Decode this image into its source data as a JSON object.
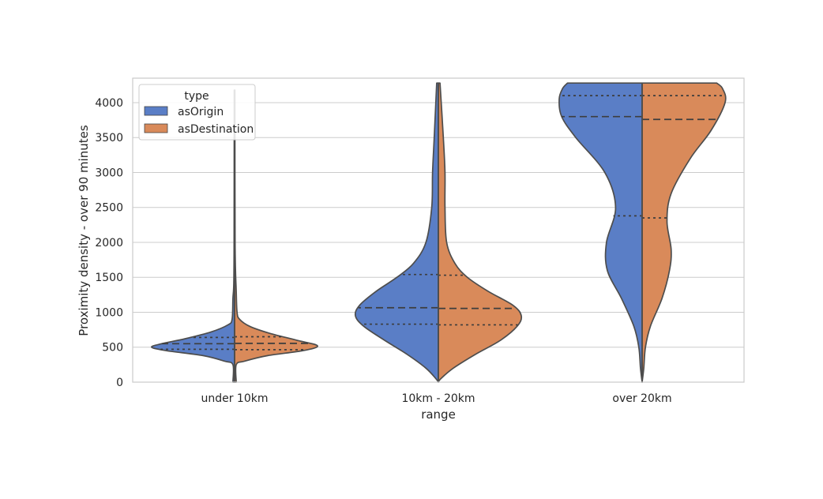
{
  "chart_data": {
    "type": "violin",
    "split": true,
    "categories": [
      "under 10km",
      "10km - 20km",
      "over 20km"
    ],
    "xlabel": "range",
    "ylabel": "Proximity density - over 90 minutes",
    "ylim": [
      0,
      4350
    ],
    "yticks": [
      0,
      500,
      1000,
      1500,
      2000,
      2500,
      3000,
      3500,
      4000
    ],
    "grid": true,
    "legend": {
      "title": "type",
      "placement": "top-left"
    },
    "series": [
      {
        "name": "asOrigin",
        "color": "#5a7ec6",
        "violins": [
          {
            "category": "under 10km",
            "min": 0,
            "max": 4180,
            "quartiles": [
              470,
              550,
              640
            ],
            "profile": [
              [
                0,
                0.02
              ],
              [
                250,
                0.02
              ],
              [
                300,
                0.12
              ],
              [
                380,
                0.38
              ],
              [
                450,
                0.82
              ],
              [
                500,
                1.0
              ],
              [
                550,
                0.88
              ],
              [
                620,
                0.6
              ],
              [
                720,
                0.28
              ],
              [
                820,
                0.08
              ],
              [
                900,
                0.03
              ],
              [
                1200,
                0.02
              ],
              [
                1400,
                0.01
              ],
              [
                2000,
                0.006
              ],
              [
                4180,
                0.004
              ]
            ]
          },
          {
            "category": "10km - 20km",
            "min": 0,
            "max": 4280,
            "quartiles": [
              830,
              1065,
              1540
            ],
            "profile": [
              [
                0,
                0.0
              ],
              [
                50,
                0.03
              ],
              [
                200,
                0.15
              ],
              [
                400,
                0.38
              ],
              [
                600,
                0.65
              ],
              [
                800,
                0.9
              ],
              [
                950,
                1.0
              ],
              [
                1100,
                0.95
              ],
              [
                1300,
                0.75
              ],
              [
                1500,
                0.5
              ],
              [
                1700,
                0.3
              ],
              [
                2000,
                0.15
              ],
              [
                2500,
                0.08
              ],
              [
                3000,
                0.07
              ],
              [
                3500,
                0.05
              ],
              [
                4280,
                0.02
              ]
            ]
          },
          {
            "category": "over 20km",
            "min": 0,
            "max": 4280,
            "quartiles": [
              2380,
              3800,
              4100
            ],
            "profile": [
              [
                0,
                0.0
              ],
              [
                200,
                0.02
              ],
              [
                500,
                0.04
              ],
              [
                800,
                0.1
              ],
              [
                1200,
                0.25
              ],
              [
                1600,
                0.42
              ],
              [
                2000,
                0.43
              ],
              [
                2500,
                0.32
              ],
              [
                3000,
                0.45
              ],
              [
                3500,
                0.8
              ],
              [
                3800,
                0.97
              ],
              [
                4050,
                1.0
              ],
              [
                4200,
                0.96
              ],
              [
                4280,
                0.9
              ]
            ]
          }
        ]
      },
      {
        "name": "asDestination",
        "color": "#d98a5a",
        "violins": [
          {
            "category": "under 10km",
            "min": 0,
            "max": 4180,
            "quartiles": [
              465,
              555,
              650
            ],
            "profile": [
              [
                0,
                0.02
              ],
              [
                250,
                0.02
              ],
              [
                300,
                0.12
              ],
              [
                380,
                0.4
              ],
              [
                450,
                0.82
              ],
              [
                520,
                1.0
              ],
              [
                600,
                0.75
              ],
              [
                700,
                0.42
              ],
              [
                800,
                0.18
              ],
              [
                900,
                0.06
              ],
              [
                1000,
                0.03
              ],
              [
                1300,
                0.02
              ],
              [
                2000,
                0.006
              ],
              [
                4180,
                0.004
              ]
            ]
          },
          {
            "category": "10km - 20km",
            "min": 0,
            "max": 4280,
            "quartiles": [
              820,
              1055,
              1530
            ],
            "profile": [
              [
                0,
                0.0
              ],
              [
                50,
                0.03
              ],
              [
                200,
                0.18
              ],
              [
                400,
                0.45
              ],
              [
                600,
                0.75
              ],
              [
                800,
                0.95
              ],
              [
                950,
                1.0
              ],
              [
                1100,
                0.9
              ],
              [
                1300,
                0.6
              ],
              [
                1500,
                0.35
              ],
              [
                1700,
                0.2
              ],
              [
                2000,
                0.1
              ],
              [
                2500,
                0.08
              ],
              [
                3000,
                0.08
              ],
              [
                3500,
                0.06
              ],
              [
                4280,
                0.02
              ]
            ]
          },
          {
            "category": "over 20km",
            "min": 0,
            "max": 4280,
            "quartiles": [
              2350,
              3760,
              4100
            ],
            "profile": [
              [
                0,
                0.0
              ],
              [
                200,
                0.02
              ],
              [
                500,
                0.04
              ],
              [
                800,
                0.1
              ],
              [
                1200,
                0.24
              ],
              [
                1600,
                0.33
              ],
              [
                1900,
                0.35
              ],
              [
                2300,
                0.3
              ],
              [
                2700,
                0.35
              ],
              [
                3200,
                0.58
              ],
              [
                3600,
                0.83
              ],
              [
                4000,
                1.0
              ],
              [
                4200,
                0.97
              ],
              [
                4280,
                0.9
              ]
            ]
          }
        ]
      }
    ]
  }
}
